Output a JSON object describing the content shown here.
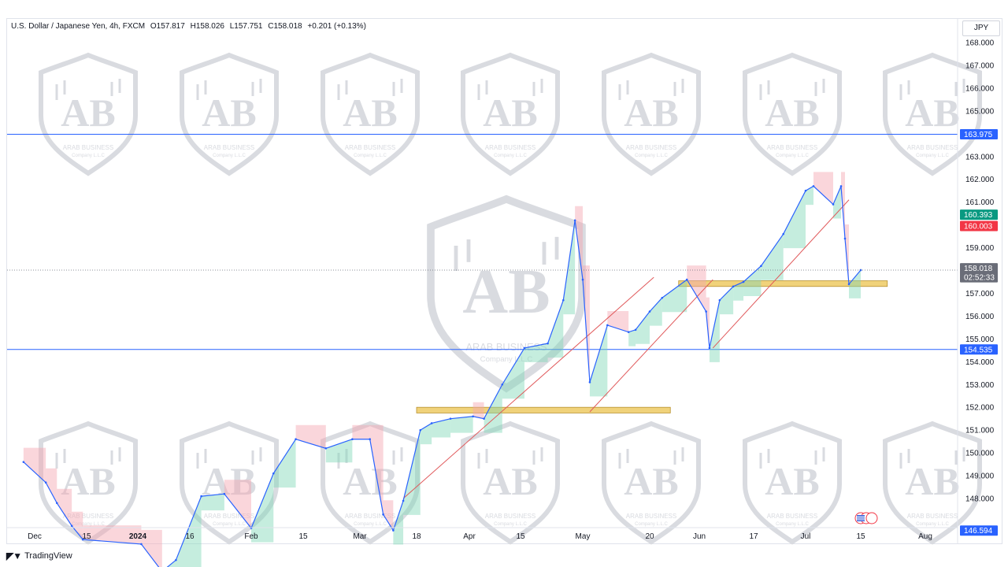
{
  "header": {
    "symbol": "U.S. Dollar / Japanese Yen, 4h, FXCM",
    "open": "O157.817",
    "high": "H158.026",
    "low": "L157.751",
    "close": "C158.018",
    "change": "+0.201 (+0.13%)"
  },
  "currency": "JPY",
  "watermark": {
    "line1": "ARAB BUSINESS",
    "line2": "Company L.L.C"
  },
  "footer": {
    "brand": "TradingView"
  },
  "price_labels": {
    "resistance": {
      "value": "163.975",
      "color": "#2962ff"
    },
    "support": {
      "value": "154.535",
      "color": "#2962ff"
    },
    "bid": {
      "value": "160.393",
      "color": "#089981"
    },
    "ask": {
      "value": "160.003",
      "color": "#f23645"
    },
    "last": {
      "value": "158.018",
      "color": "#6a6d78"
    },
    "countdown": {
      "value": "02:52:33",
      "color": "#6a6d78"
    },
    "bottom": {
      "value": "146.594",
      "color": "#2962ff"
    }
  },
  "chart_data": {
    "type": "line",
    "title": "U.S. Dollar / Japanese Yen, 4h, FXCM",
    "y_axis": {
      "ticks": [
        "168.000",
        "167.000",
        "166.000",
        "165.000",
        "163.000",
        "162.000",
        "161.000",
        "159.000",
        "157.000",
        "156.000",
        "155.000",
        "154.000",
        "153.000",
        "152.000",
        "151.000",
        "150.000",
        "149.000",
        "148.000"
      ],
      "range": [
        146.4,
        168.3
      ]
    },
    "x_axis": {
      "ticks": [
        "Dec",
        "15",
        "2024",
        "16",
        "Feb",
        "15",
        "Mar",
        "18",
        "Apr",
        "15",
        "May",
        "20",
        "Jun",
        "17",
        "Jul",
        "15",
        "Aug"
      ]
    },
    "grid": false,
    "series": [
      {
        "x": [
          "2023-11-28",
          "2023-12-04",
          "2023-12-07",
          "2023-12-11",
          "2023-12-14",
          "2024-01-02",
          "2024-01-08",
          "2024-01-12",
          "2024-01-19",
          "2024-01-25",
          "2024-02-01",
          "2024-02-07",
          "2024-02-13",
          "2024-02-21",
          "2024-02-28",
          "2024-03-04",
          "2024-03-08",
          "2024-03-11",
          "2024-03-14",
          "2024-03-19",
          "2024-03-22",
          "2024-03-27",
          "2024-04-02",
          "2024-04-05",
          "2024-04-10",
          "2024-04-16",
          "2024-04-22",
          "2024-04-26",
          "2024-04-29",
          "2024-05-01",
          "2024-05-03",
          "2024-05-08",
          "2024-05-14",
          "2024-05-16",
          "2024-05-20",
          "2024-05-23",
          "2024-05-29",
          "2024-06-03",
          "2024-06-04",
          "2024-06-07",
          "2024-06-11",
          "2024-06-14",
          "2024-06-19",
          "2024-06-25",
          "2024-07-01",
          "2024-07-03",
          "2024-07-08",
          "2024-07-10",
          "2024-07-11",
          "2024-07-12",
          "2024-07-15"
        ],
        "values": [
          149.6,
          148.7,
          147.8,
          146.8,
          146.2,
          146.0,
          144.8,
          145.3,
          148.1,
          148.2,
          146.7,
          149.1,
          150.6,
          150.2,
          150.6,
          150.6,
          147.3,
          146.6,
          147.9,
          151.0,
          151.3,
          151.5,
          151.6,
          151.5,
          153.0,
          154.6,
          154.8,
          156.7,
          160.2,
          157.6,
          153.1,
          155.6,
          155.3,
          155.4,
          156.2,
          156.8,
          157.6,
          156.2,
          154.6,
          156.7,
          157.3,
          157.5,
          158.2,
          159.6,
          161.5,
          161.7,
          160.9,
          161.7,
          159.4,
          157.4,
          158.018
        ],
        "color": "#2962ff"
      }
    ],
    "annotations": [
      {
        "type": "hline",
        "y": 163.975
      },
      {
        "type": "hline",
        "y": 154.535
      },
      {
        "type": "zone",
        "x1": "2024-03-18",
        "x2": "2024-05-25",
        "y1": 151.75,
        "y2": 152.0
      },
      {
        "type": "zone",
        "x1": "2024-05-27",
        "x2": "2024-07-22",
        "y1": 157.3,
        "y2": 157.55
      },
      {
        "type": "trendline",
        "x1": "2024-03-14",
        "y1": 148.0,
        "x2": "2024-05-21",
        "y2": 157.7
      },
      {
        "type": "trendline",
        "x1": "2024-05-03",
        "y1": 151.8,
        "x2": "2024-06-05",
        "y2": 157.6
      },
      {
        "type": "trendline",
        "x1": "2024-06-05",
        "y1": 154.6,
        "x2": "2024-07-12",
        "y2": 161.1
      }
    ]
  }
}
